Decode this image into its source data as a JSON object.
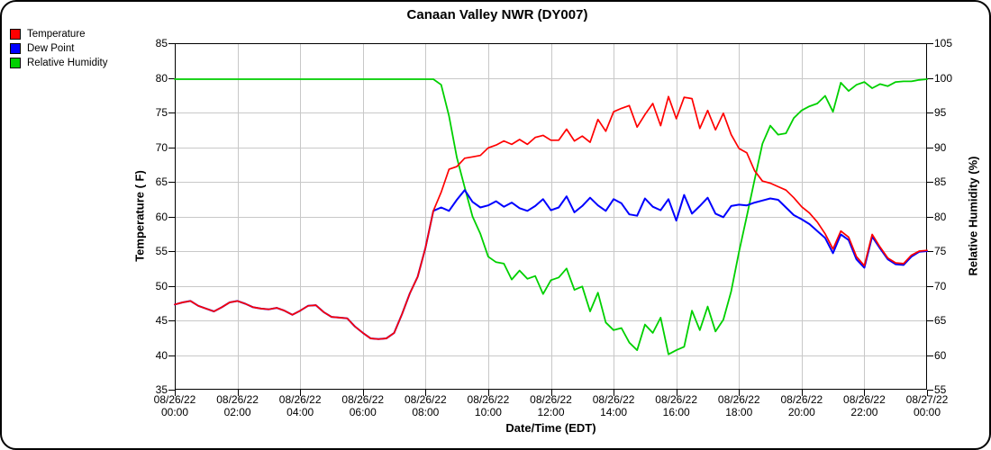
{
  "chart_data": {
    "type": "line",
    "title": "Canaan Valley NWR (DY007)",
    "x_axis": {
      "label": "Date/Time (EDT)",
      "hours_start": 0,
      "hours_step": 0.25,
      "hours_total": 24,
      "tick_every_hours": 2,
      "ticks": [
        {
          "date": "08/26/22",
          "time": "00:00"
        },
        {
          "date": "08/26/22",
          "time": "02:00"
        },
        {
          "date": "08/26/22",
          "time": "04:00"
        },
        {
          "date": "08/26/22",
          "time": "06:00"
        },
        {
          "date": "08/26/22",
          "time": "08:00"
        },
        {
          "date": "08/26/22",
          "time": "10:00"
        },
        {
          "date": "08/26/22",
          "time": "12:00"
        },
        {
          "date": "08/26/22",
          "time": "14:00"
        },
        {
          "date": "08/26/22",
          "time": "16:00"
        },
        {
          "date": "08/26/22",
          "time": "18:00"
        },
        {
          "date": "08/26/22",
          "time": "20:00"
        },
        {
          "date": "08/26/22",
          "time": "22:00"
        },
        {
          "date": "08/27/22",
          "time": "00:00"
        }
      ]
    },
    "y_left": {
      "label": "Temperature ( F)",
      "min": 35,
      "max": 85,
      "tick_step": 5
    },
    "y_right": {
      "label": "Relative Humidity (%)",
      "min": 55,
      "max": 105,
      "tick_step": 5
    },
    "grid": true,
    "legend_position": "top-left",
    "grid_color": "#c8c8c8",
    "axis_color": "#000000",
    "series": [
      {
        "name": "Temperature",
        "color": "#ff0000",
        "axis": "left",
        "width": 1.7,
        "values": [
          47.3,
          47.6,
          47.8,
          47.1,
          46.7,
          46.3,
          46.9,
          47.6,
          47.8,
          47.4,
          46.9,
          46.7,
          46.6,
          46.8,
          46.4,
          45.8,
          46.4,
          47.1,
          47.2,
          46.2,
          45.5,
          45.4,
          45.3,
          44.1,
          43.2,
          42.4,
          42.3,
          42.4,
          43.2,
          45.9,
          48.9,
          51.3,
          55.5,
          60.8,
          63.5,
          66.8,
          67.2,
          68.4,
          68.6,
          68.8,
          69.9,
          70.3,
          70.9,
          70.4,
          71.1,
          70.4,
          71.4,
          71.7,
          71.0,
          71.0,
          72.6,
          70.9,
          71.6,
          70.7,
          74.0,
          72.3,
          75.1,
          75.6,
          76.0,
          72.9,
          74.7,
          76.3,
          73.1,
          77.3,
          74.1,
          77.2,
          77.0,
          72.7,
          75.3,
          72.5,
          74.9,
          71.8,
          69.8,
          69.2,
          66.6,
          65.1,
          64.8,
          64.3,
          63.8,
          62.7,
          61.4,
          60.5,
          59.2,
          57.5,
          55.3,
          57.9,
          57.0,
          54.2,
          52.9,
          57.4,
          55.6,
          54.0,
          53.3,
          53.2,
          54.4,
          55.0,
          55.1
        ]
      },
      {
        "name": "Dew Point",
        "color": "#0000ff",
        "axis": "left",
        "width": 2.0,
        "values": [
          47.3,
          47.6,
          47.8,
          47.1,
          46.7,
          46.3,
          46.9,
          47.6,
          47.8,
          47.4,
          46.9,
          46.7,
          46.6,
          46.8,
          46.4,
          45.8,
          46.4,
          47.1,
          47.2,
          46.2,
          45.5,
          45.4,
          45.3,
          44.1,
          43.2,
          42.4,
          42.3,
          42.4,
          43.2,
          45.9,
          48.9,
          51.3,
          55.5,
          60.8,
          61.3,
          60.8,
          62.4,
          63.8,
          62.1,
          61.3,
          61.6,
          62.2,
          61.4,
          62.0,
          61.2,
          60.8,
          61.5,
          62.5,
          60.9,
          61.3,
          62.9,
          60.6,
          61.5,
          62.7,
          61.6,
          60.8,
          62.5,
          61.9,
          60.3,
          60.1,
          62.6,
          61.4,
          60.9,
          62.5,
          59.4,
          63.1,
          60.4,
          61.5,
          62.7,
          60.4,
          59.9,
          61.5,
          61.7,
          61.6,
          62.0,
          62.3,
          62.6,
          62.4,
          61.3,
          60.2,
          59.6,
          58.9,
          57.9,
          56.9,
          54.7,
          57.4,
          56.6,
          53.8,
          52.6,
          57.1,
          55.4,
          53.8,
          53.1,
          53.0,
          54.2,
          54.9,
          55.0
        ]
      },
      {
        "name": "Relative Humidity",
        "color": "#00d000",
        "axis": "right",
        "width": 1.8,
        "values": [
          99.8,
          99.8,
          99.8,
          99.8,
          99.8,
          99.8,
          99.8,
          99.8,
          99.8,
          99.8,
          99.8,
          99.8,
          99.8,
          99.8,
          99.8,
          99.8,
          99.8,
          99.8,
          99.8,
          99.8,
          99.8,
          99.8,
          99.8,
          99.8,
          99.8,
          99.8,
          99.8,
          99.8,
          99.8,
          99.8,
          99.8,
          99.8,
          99.8,
          99.8,
          99.0,
          94.5,
          88.5,
          84.2,
          80.0,
          77.5,
          74.2,
          73.4,
          73.2,
          70.9,
          72.2,
          71.0,
          71.4,
          68.8,
          70.8,
          71.2,
          72.5,
          69.4,
          69.9,
          66.3,
          69.0,
          64.7,
          63.6,
          63.9,
          61.8,
          60.7,
          64.4,
          63.2,
          65.4,
          60.1,
          60.7,
          61.2,
          66.4,
          63.6,
          67.0,
          63.4,
          65.1,
          69.2,
          74.9,
          80.0,
          85.3,
          90.5,
          93.1,
          91.8,
          92.0,
          94.2,
          95.3,
          95.9,
          96.3,
          97.4,
          95.1,
          99.3,
          98.1,
          99.0,
          99.4,
          98.5,
          99.1,
          98.8,
          99.4,
          99.5,
          99.5,
          99.7,
          99.8
        ]
      }
    ]
  }
}
